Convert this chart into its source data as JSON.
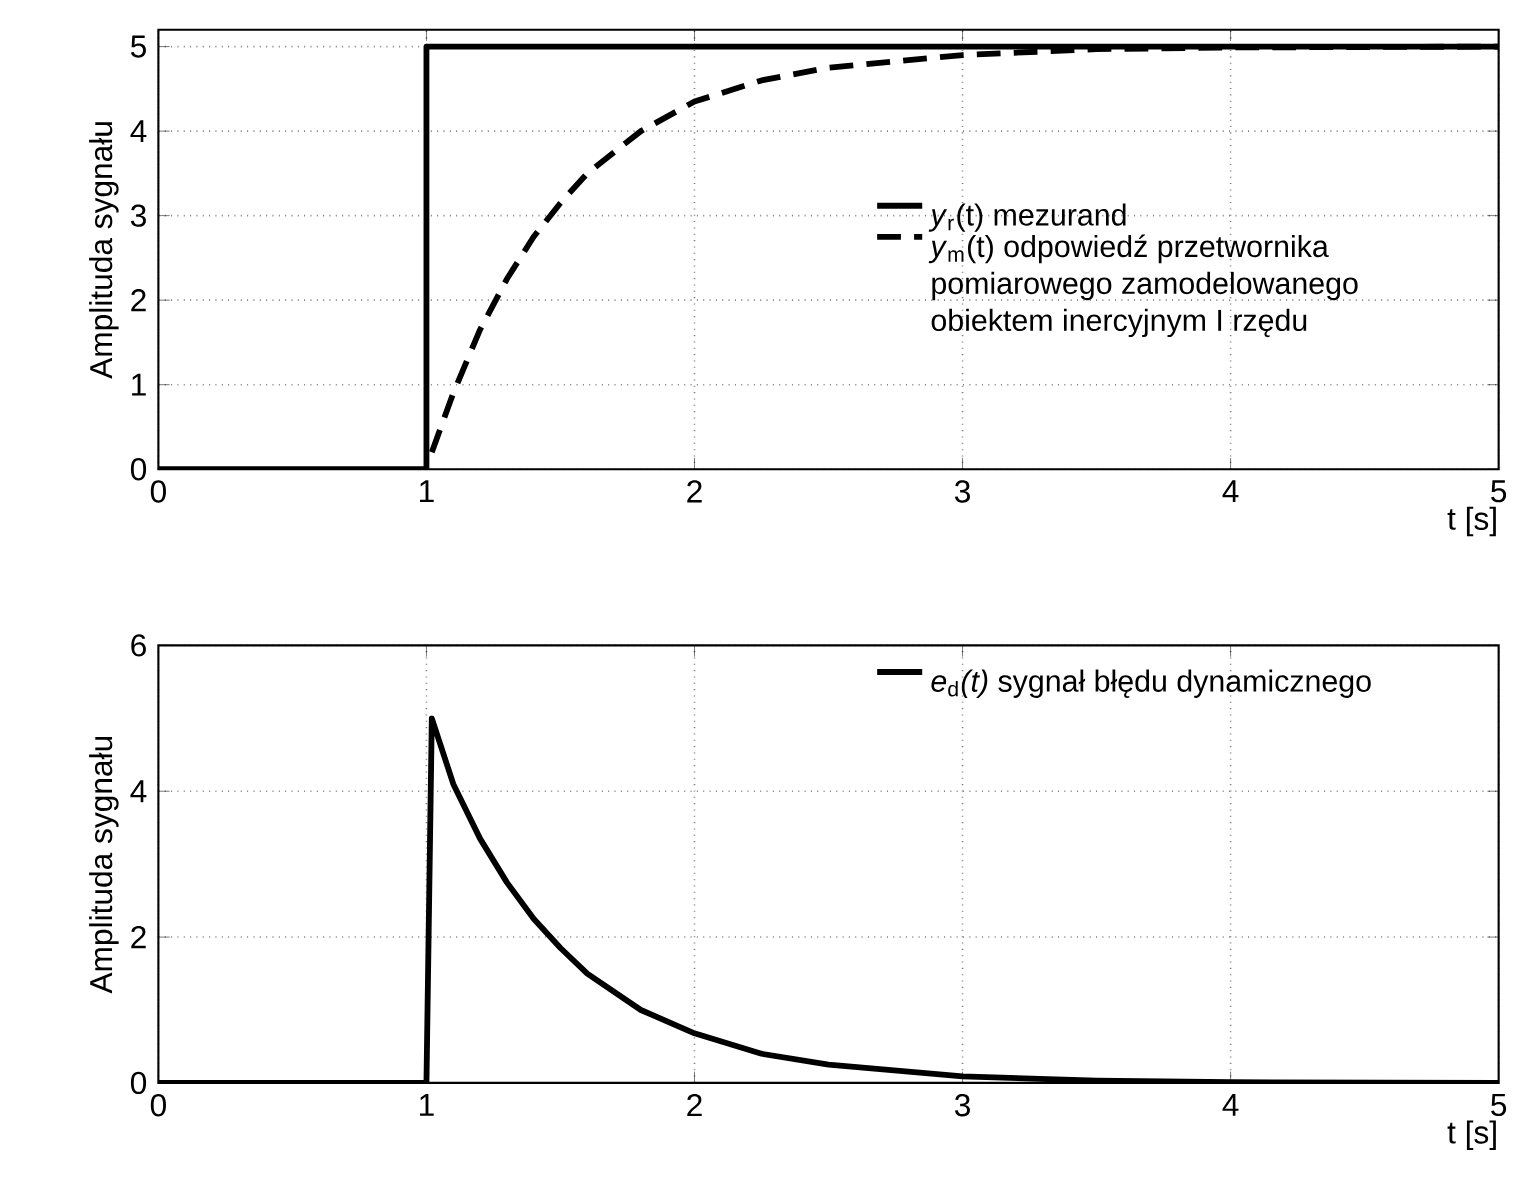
{
  "chart_data": [
    {
      "type": "line",
      "xlabel": "t [s]",
      "ylabel": "Amplituda sygnału",
      "xlim": [
        0,
        5
      ],
      "ylim": [
        0,
        5.2
      ],
      "xticks": [
        0,
        1,
        2,
        3,
        4,
        5
      ],
      "yticks": [
        0,
        1,
        2,
        3,
        4,
        5
      ],
      "grid": true,
      "legend": "bottom right",
      "series": [
        {
          "name": "*y*$_{r}$(t) mezurand",
          "color": "#000000",
          "line_style": "solid",
          "x": [
            0,
            1,
            1,
            5
          ],
          "values": [
            0,
            0,
            5,
            5
          ]
        },
        {
          "name": "*y*$_{m}$(t) odpowiedź przetwornika pomiarowego zamodelowanego obiektem inercyjnym I rzędu",
          "color": "#000000",
          "line_style": "dashed",
          "x": [
            1.02,
            1.1,
            1.2,
            1.3,
            1.4,
            1.5,
            1.6,
            1.8,
            2.0,
            2.25,
            2.5,
            3,
            3.5,
            4,
            5
          ],
          "values": [
            0.2,
            0.9,
            1.65,
            2.25,
            2.75,
            3.15,
            3.5,
            4.0,
            4.35,
            4.6,
            4.75,
            4.9,
            4.97,
            4.99,
            5.0
          ]
        }
      ]
    },
    {
      "type": "line",
      "xlabel": "t [s]",
      "ylabel": "Amplituda sygnału",
      "xlim": [
        0,
        5
      ],
      "ylim": [
        0,
        6
      ],
      "xticks": [
        0,
        1,
        2,
        3,
        4,
        5
      ],
      "yticks": [
        0,
        2,
        4,
        6
      ],
      "grid": true,
      "legend": "top right",
      "series": [
        {
          "name": "*e*$_{d}$*(t)* sygnał błędu dynamicznego",
          "color": "#000000",
          "line_style": "solid",
          "x": [
            0,
            1,
            1.02,
            1.1,
            1.2,
            1.3,
            1.4,
            1.5,
            1.6,
            1.8,
            2.0,
            2.25,
            2.5,
            3,
            3.5,
            4,
            5
          ],
          "values": [
            0,
            0,
            5,
            4.1,
            3.35,
            2.75,
            2.25,
            1.85,
            1.5,
            1.0,
            0.68,
            0.4,
            0.25,
            0.09,
            0.03,
            0.01,
            0
          ]
        }
      ]
    }
  ]
}
